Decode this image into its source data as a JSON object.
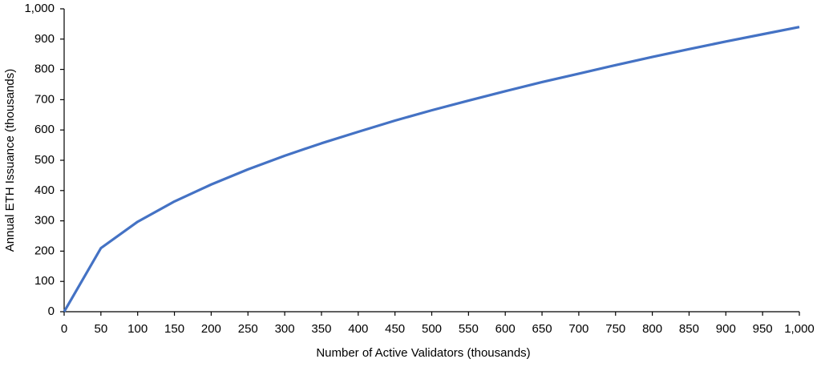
{
  "chart_data": {
    "type": "line",
    "x_label": "Number of Active Validators (thousands)",
    "y_label": "Annual ETH Issuance (thousands)",
    "x": [
      0,
      50,
      100,
      150,
      200,
      250,
      300,
      350,
      400,
      450,
      500,
      550,
      600,
      650,
      700,
      750,
      800,
      850,
      900,
      950,
      1000
    ],
    "series": [
      {
        "name": "Annual ETH Issuance",
        "color": "#4472c4",
        "values": [
          0,
          210,
          297,
          364,
          420,
          470,
          515,
          556,
          594,
          631,
          665,
          697,
          728,
          758,
          786,
          814,
          841,
          867,
          892,
          916,
          940
        ]
      }
    ],
    "xlim": [
      0,
      1000
    ],
    "xticks": [
      0,
      50,
      100,
      150,
      200,
      250,
      300,
      350,
      400,
      450,
      500,
      550,
      600,
      650,
      700,
      750,
      800,
      850,
      900,
      950,
      {
        "value": 1000,
        "label": "1,000"
      }
    ],
    "ylim": [
      0,
      1000
    ],
    "yticks": [
      0,
      100,
      200,
      300,
      400,
      500,
      600,
      700,
      800,
      900,
      {
        "value": 1000,
        "label": "1,000"
      }
    ],
    "grid": false
  }
}
